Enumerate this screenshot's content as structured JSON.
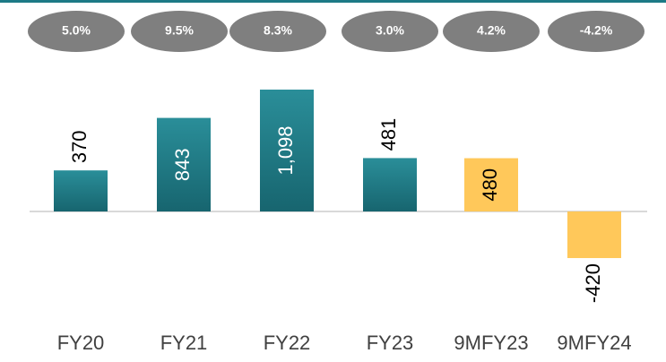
{
  "chart_data": {
    "type": "bar",
    "categories": [
      "FY20",
      "FY21",
      "FY22",
      "FY23",
      "9MFY23",
      "9MFY24"
    ],
    "values": [
      370,
      843,
      1098,
      481,
      480,
      -420
    ],
    "value_labels": [
      "370",
      "843",
      "1,098",
      "481",
      "480",
      "-420"
    ],
    "label_positions": [
      "outside",
      "inside",
      "inside",
      "outside",
      "inside",
      "outside"
    ],
    "colors": [
      "#1d7a86",
      "#1d7a86",
      "#1d7a86",
      "#1d7a86",
      "#ffc85a",
      "#ffc85a"
    ],
    "annotations": [
      "5.0%",
      "9.5%",
      "8.3%",
      "3.0%",
      "4.2%",
      "-4.2%"
    ]
  }
}
